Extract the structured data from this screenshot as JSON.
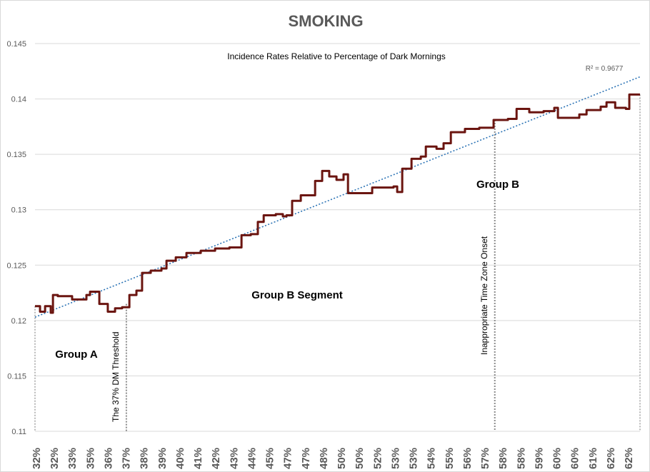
{
  "chart_data": {
    "type": "line",
    "title": "SMOKING",
    "subtitle": "Incidence Rates Relative to Percentage of Dark Mornings",
    "xlabel": "",
    "ylabel": "",
    "ylim": [
      0.11,
      0.145
    ],
    "yticks": [
      "0.11",
      "0.115",
      "0.12",
      "0.125",
      "0.13",
      "0.135",
      "0.14",
      "0.145"
    ],
    "categories": [
      "32%",
      "32%",
      "33%",
      "35%",
      "36%",
      "37%",
      "38%",
      "39%",
      "40%",
      "41%",
      "42%",
      "43%",
      "44%",
      "45%",
      "47%",
      "47%",
      "48%",
      "50%",
      "50%",
      "52%",
      "53%",
      "53%",
      "54%",
      "55%",
      "56%",
      "57%",
      "58%",
      "58%",
      "59%",
      "60%",
      "60%",
      "61%",
      "62%",
      "62%"
    ],
    "grid": "horizontal",
    "line_color": "#6b1510",
    "trend_color": "#2e75b6",
    "series": [
      {
        "points": [
          [
            0,
            0.1213
          ],
          [
            0.25,
            0.1208
          ],
          [
            0.5,
            0.1213
          ],
          [
            0.78,
            0.1207
          ],
          [
            0.89,
            0.1223
          ],
          [
            1.13,
            0.1222
          ],
          [
            1.66,
            0.1222
          ],
          [
            1.84,
            0.1219
          ],
          [
            2.37,
            0.1219
          ],
          [
            2.55,
            0.1223
          ],
          [
            2.73,
            0.1226
          ],
          [
            3.08,
            0.1226
          ],
          [
            3.19,
            0.1215
          ],
          [
            3.61,
            0.1208
          ],
          [
            3.97,
            0.1211
          ],
          [
            4.32,
            0.1212
          ],
          [
            4.68,
            0.1223
          ],
          [
            5.03,
            0.1227
          ],
          [
            5.31,
            0.1243
          ],
          [
            5.74,
            0.1245
          ],
          [
            6.27,
            0.1247
          ],
          [
            6.52,
            0.1254
          ],
          [
            6.98,
            0.1257
          ],
          [
            7.51,
            0.1261
          ],
          [
            8.22,
            0.1263
          ],
          [
            8.93,
            0.1265
          ],
          [
            9.64,
            0.1266
          ],
          [
            10.17,
            0.1266
          ],
          [
            10.24,
            0.1277
          ],
          [
            10.7,
            0.1278
          ],
          [
            11.05,
            0.1289
          ],
          [
            11.34,
            0.1295
          ],
          [
            11.94,
            0.1296
          ],
          [
            12.29,
            0.1294
          ],
          [
            12.47,
            0.1295
          ],
          [
            12.75,
            0.1308
          ],
          [
            13.18,
            0.1313
          ],
          [
            13.89,
            0.1326
          ],
          [
            14.24,
            0.1335
          ],
          [
            14.59,
            0.133
          ],
          [
            14.95,
            0.1327
          ],
          [
            15.3,
            0.1332
          ],
          [
            15.52,
            0.1315
          ],
          [
            16.01,
            0.1315
          ],
          [
            16.72,
            0.132
          ],
          [
            17.78,
            0.1321
          ],
          [
            17.96,
            0.1316
          ],
          [
            18.21,
            0.1337
          ],
          [
            18.67,
            0.1346
          ],
          [
            19.13,
            0.1348
          ],
          [
            19.38,
            0.1357
          ],
          [
            19.91,
            0.1355
          ],
          [
            20.26,
            0.136
          ],
          [
            20.62,
            0.137
          ],
          [
            21.32,
            0.1373
          ],
          [
            22.03,
            0.1374
          ],
          [
            22.74,
            0.1381
          ],
          [
            23.45,
            0.1382
          ],
          [
            23.88,
            0.1391
          ],
          [
            24.51,
            0.1388
          ],
          [
            25.22,
            0.1389
          ],
          [
            25.75,
            0.1392
          ],
          [
            25.93,
            0.1383
          ],
          [
            26.64,
            0.1383
          ],
          [
            26.99,
            0.1386
          ],
          [
            27.35,
            0.139
          ],
          [
            28.05,
            0.1393
          ],
          [
            28.34,
            0.1397
          ],
          [
            28.77,
            0.1392
          ],
          [
            29.3,
            0.1391
          ],
          [
            29.47,
            0.1404
          ],
          [
            30,
            0.1404
          ]
        ]
      }
    ],
    "trendline": {
      "type": "linear",
      "start": [
        0,
        0.1203
      ],
      "end": [
        30,
        0.142
      ],
      "r2_label": "R² = 0.9677"
    },
    "annotations": [
      {
        "text": "Group A",
        "kind": "label"
      },
      {
        "text": "Group B Segment",
        "kind": "label"
      },
      {
        "text": "Group B",
        "kind": "label"
      },
      {
        "text": "The 37% DM Threshold",
        "kind": "vline",
        "x": 4.53
      },
      {
        "text": "Inappropriate Time Zone Onset",
        "kind": "vline",
        "x": 22.8
      }
    ]
  }
}
